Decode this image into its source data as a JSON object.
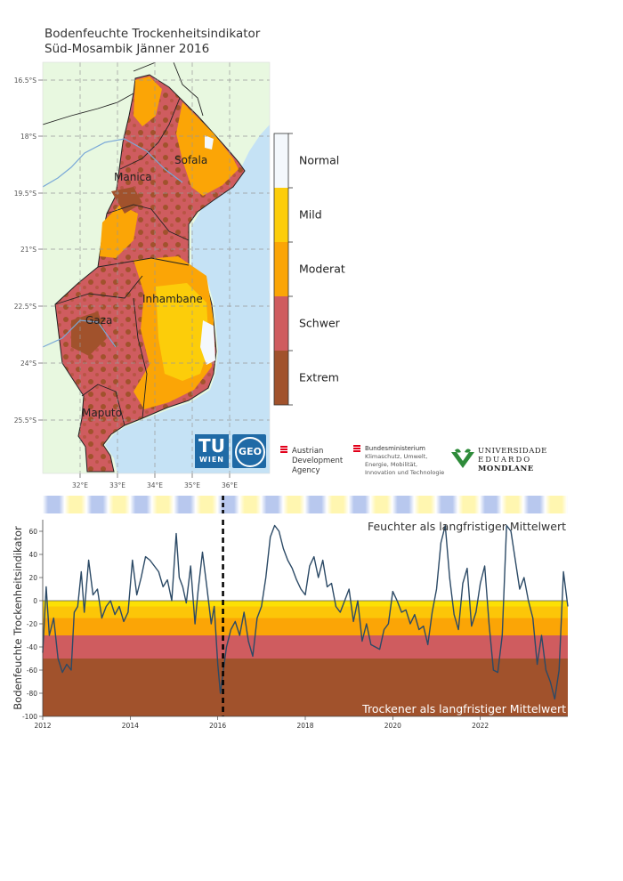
{
  "title": {
    "line1": "Bodenfeuchte Trockenheitsindikator",
    "line2": "Süd-Mosambik Jänner 2016"
  },
  "map": {
    "lat_ticks": [
      "16.5°S",
      "18°S",
      "19.5°S",
      "21°S",
      "22.5°S",
      "24°S",
      "25.5°S"
    ],
    "lon_ticks": [
      "32°E",
      "33°E",
      "34°E",
      "35°E",
      "36°E"
    ],
    "provinces": [
      "Sofala",
      "Manica",
      "Inhambane",
      "Gaza",
      "Maputo"
    ],
    "colors": {
      "land": "#e8f8e0",
      "ocean": "#c5e2f5",
      "grid": "#999999",
      "border": "#222222"
    }
  },
  "legend": {
    "classes": [
      {
        "label": "Normal",
        "color": "#f4f8fc"
      },
      {
        "label": "Mild",
        "color": "#fccd0a"
      },
      {
        "label": "Moderat",
        "color": "#fba506"
      },
      {
        "label": "Schwer",
        "color": "#cf5c5f"
      },
      {
        "label": "Extrem",
        "color": "#a1522c"
      }
    ]
  },
  "logos": {
    "tu": {
      "line1": "TU",
      "line2": "WIEN"
    },
    "geo": "GEO",
    "ada": [
      "Austrian",
      "Development",
      "Agency"
    ],
    "bmk": [
      "Bundesministerium",
      "Klimaschutz, Umwelt,",
      "Energie, Mobilität,",
      "Innovation und Technologie"
    ],
    "uem": [
      "UNIVERSIDADE",
      "EDUARDO",
      "MONDLANE"
    ]
  },
  "chart_data": {
    "type": "line",
    "ylabel": "Bodenfeuchte Trockenheitsindikator",
    "ylim": [
      -100,
      70
    ],
    "yticks": [
      60,
      40,
      20,
      0,
      -20,
      -40,
      -60,
      -80,
      -100
    ],
    "xlim": [
      2012,
      2024
    ],
    "xticks": [
      "2012",
      "2014",
      "2016",
      "2018",
      "2020",
      "2022"
    ],
    "annotations": {
      "wetter": "Feuchter als langfristiger Mittelwert",
      "drier": "Trockener als langfristiger Mittelwert"
    },
    "bands": [
      {
        "from": -5,
        "to": 0,
        "color": "#fce005"
      },
      {
        "from": -15,
        "to": -5,
        "color": "#fcc608"
      },
      {
        "from": -30,
        "to": -15,
        "color": "#fba506"
      },
      {
        "from": -50,
        "to": -30,
        "color": "#cf5c5f"
      },
      {
        "from": -100,
        "to": -50,
        "color": "#a1522c"
      }
    ],
    "marker_date": 2016.12,
    "line_color": "#2c4a66",
    "series": {
      "x": [
        2012.0,
        2012.08,
        2012.15,
        2012.25,
        2012.35,
        2012.45,
        2012.55,
        2012.65,
        2012.72,
        2012.8,
        2012.88,
        2012.95,
        2013.05,
        2013.15,
        2013.25,
        2013.35,
        2013.45,
        2013.55,
        2013.65,
        2013.75,
        2013.85,
        2013.95,
        2014.05,
        2014.15,
        2014.25,
        2014.35,
        2014.45,
        2014.55,
        2014.65,
        2014.75,
        2014.85,
        2014.95,
        2015.05,
        2015.12,
        2015.2,
        2015.28,
        2015.38,
        2015.48,
        2015.55,
        2015.65,
        2015.75,
        2015.85,
        2015.92,
        2016.0,
        2016.06,
        2016.12,
        2016.2,
        2016.3,
        2016.4,
        2016.5,
        2016.6,
        2016.7,
        2016.8,
        2016.9,
        2017.0,
        2017.1,
        2017.2,
        2017.3,
        2017.4,
        2017.5,
        2017.6,
        2017.7,
        2017.8,
        2017.9,
        2018.0,
        2018.1,
        2018.2,
        2018.3,
        2018.4,
        2018.5,
        2018.6,
        2018.7,
        2018.8,
        2018.9,
        2019.0,
        2019.1,
        2019.2,
        2019.3,
        2019.4,
        2019.5,
        2019.6,
        2019.7,
        2019.8,
        2019.9,
        2020.0,
        2020.1,
        2020.2,
        2020.3,
        2020.4,
        2020.5,
        2020.6,
        2020.7,
        2020.8,
        2020.9,
        2021.0,
        2021.1,
        2021.2,
        2021.3,
        2021.4,
        2021.5,
        2021.6,
        2021.7,
        2021.8,
        2021.9,
        2022.0,
        2022.1,
        2022.2,
        2022.3,
        2022.4,
        2022.5,
        2022.6,
        2022.7,
        2022.8,
        2022.9,
        2023.0,
        2023.1,
        2023.2,
        2023.3,
        2023.4,
        2023.5,
        2023.6,
        2023.7,
        2023.8,
        2023.9,
        2024.0
      ],
      "y": [
        -45,
        12,
        -30,
        -15,
        -50,
        -62,
        -55,
        -60,
        -10,
        -5,
        25,
        -10,
        35,
        5,
        10,
        -15,
        -5,
        0,
        -12,
        -5,
        -18,
        -10,
        35,
        5,
        20,
        38,
        35,
        30,
        25,
        12,
        18,
        0,
        58,
        20,
        12,
        -2,
        30,
        -20,
        8,
        42,
        12,
        -20,
        -5,
        -55,
        -80,
        -62,
        -40,
        -25,
        -18,
        -30,
        -10,
        -35,
        -48,
        -15,
        -5,
        20,
        55,
        65,
        60,
        45,
        35,
        28,
        18,
        10,
        5,
        30,
        38,
        20,
        35,
        12,
        15,
        -5,
        -10,
        0,
        10,
        -18,
        0,
        -35,
        -20,
        -38,
        -40,
        -42,
        -25,
        -20,
        8,
        0,
        -10,
        -8,
        -20,
        -12,
        -25,
        -22,
        -38,
        -10,
        10,
        50,
        65,
        20,
        -12,
        -25,
        15,
        28,
        -22,
        -10,
        15,
        30,
        -20,
        -60,
        -62,
        -30,
        65,
        60,
        35,
        10,
        20,
        0,
        -15,
        -55,
        -30,
        -60,
        -70,
        -85,
        -60,
        25,
        -5
      ]
    }
  }
}
